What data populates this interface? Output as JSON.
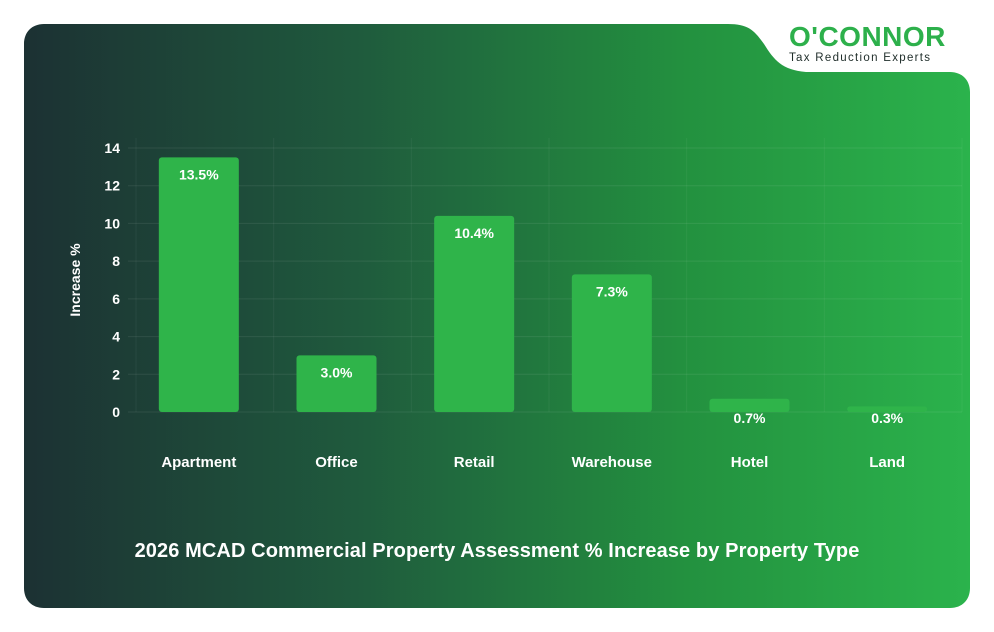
{
  "logo": {
    "brand": "O'CONNOR",
    "tagline": "Tax Reduction Experts"
  },
  "colors": {
    "bar": "#2fb44a",
    "bg_dark": "#1c3233",
    "bg_light": "#2bb24c",
    "text": "#ffffff",
    "brand": "#2db04b"
  },
  "chart_data": {
    "type": "bar",
    "title": "2026 MCAD Commercial Property Assessment % Increase by Property Type",
    "xlabel": "",
    "ylabel": "Increase %",
    "categories": [
      "Apartment",
      "Office",
      "Retail",
      "Warehouse",
      "Hotel",
      "Land"
    ],
    "values": [
      13.5,
      3.0,
      10.4,
      7.3,
      0.7,
      0.3
    ],
    "data_labels": [
      "13.5%",
      "3.0%",
      "10.4%",
      "7.3%",
      "0.7%",
      "0.3%"
    ],
    "ylim": [
      0,
      14
    ],
    "yticks": [
      0,
      2,
      4,
      6,
      8,
      10,
      12,
      14
    ],
    "grid": true,
    "legend": "none"
  }
}
